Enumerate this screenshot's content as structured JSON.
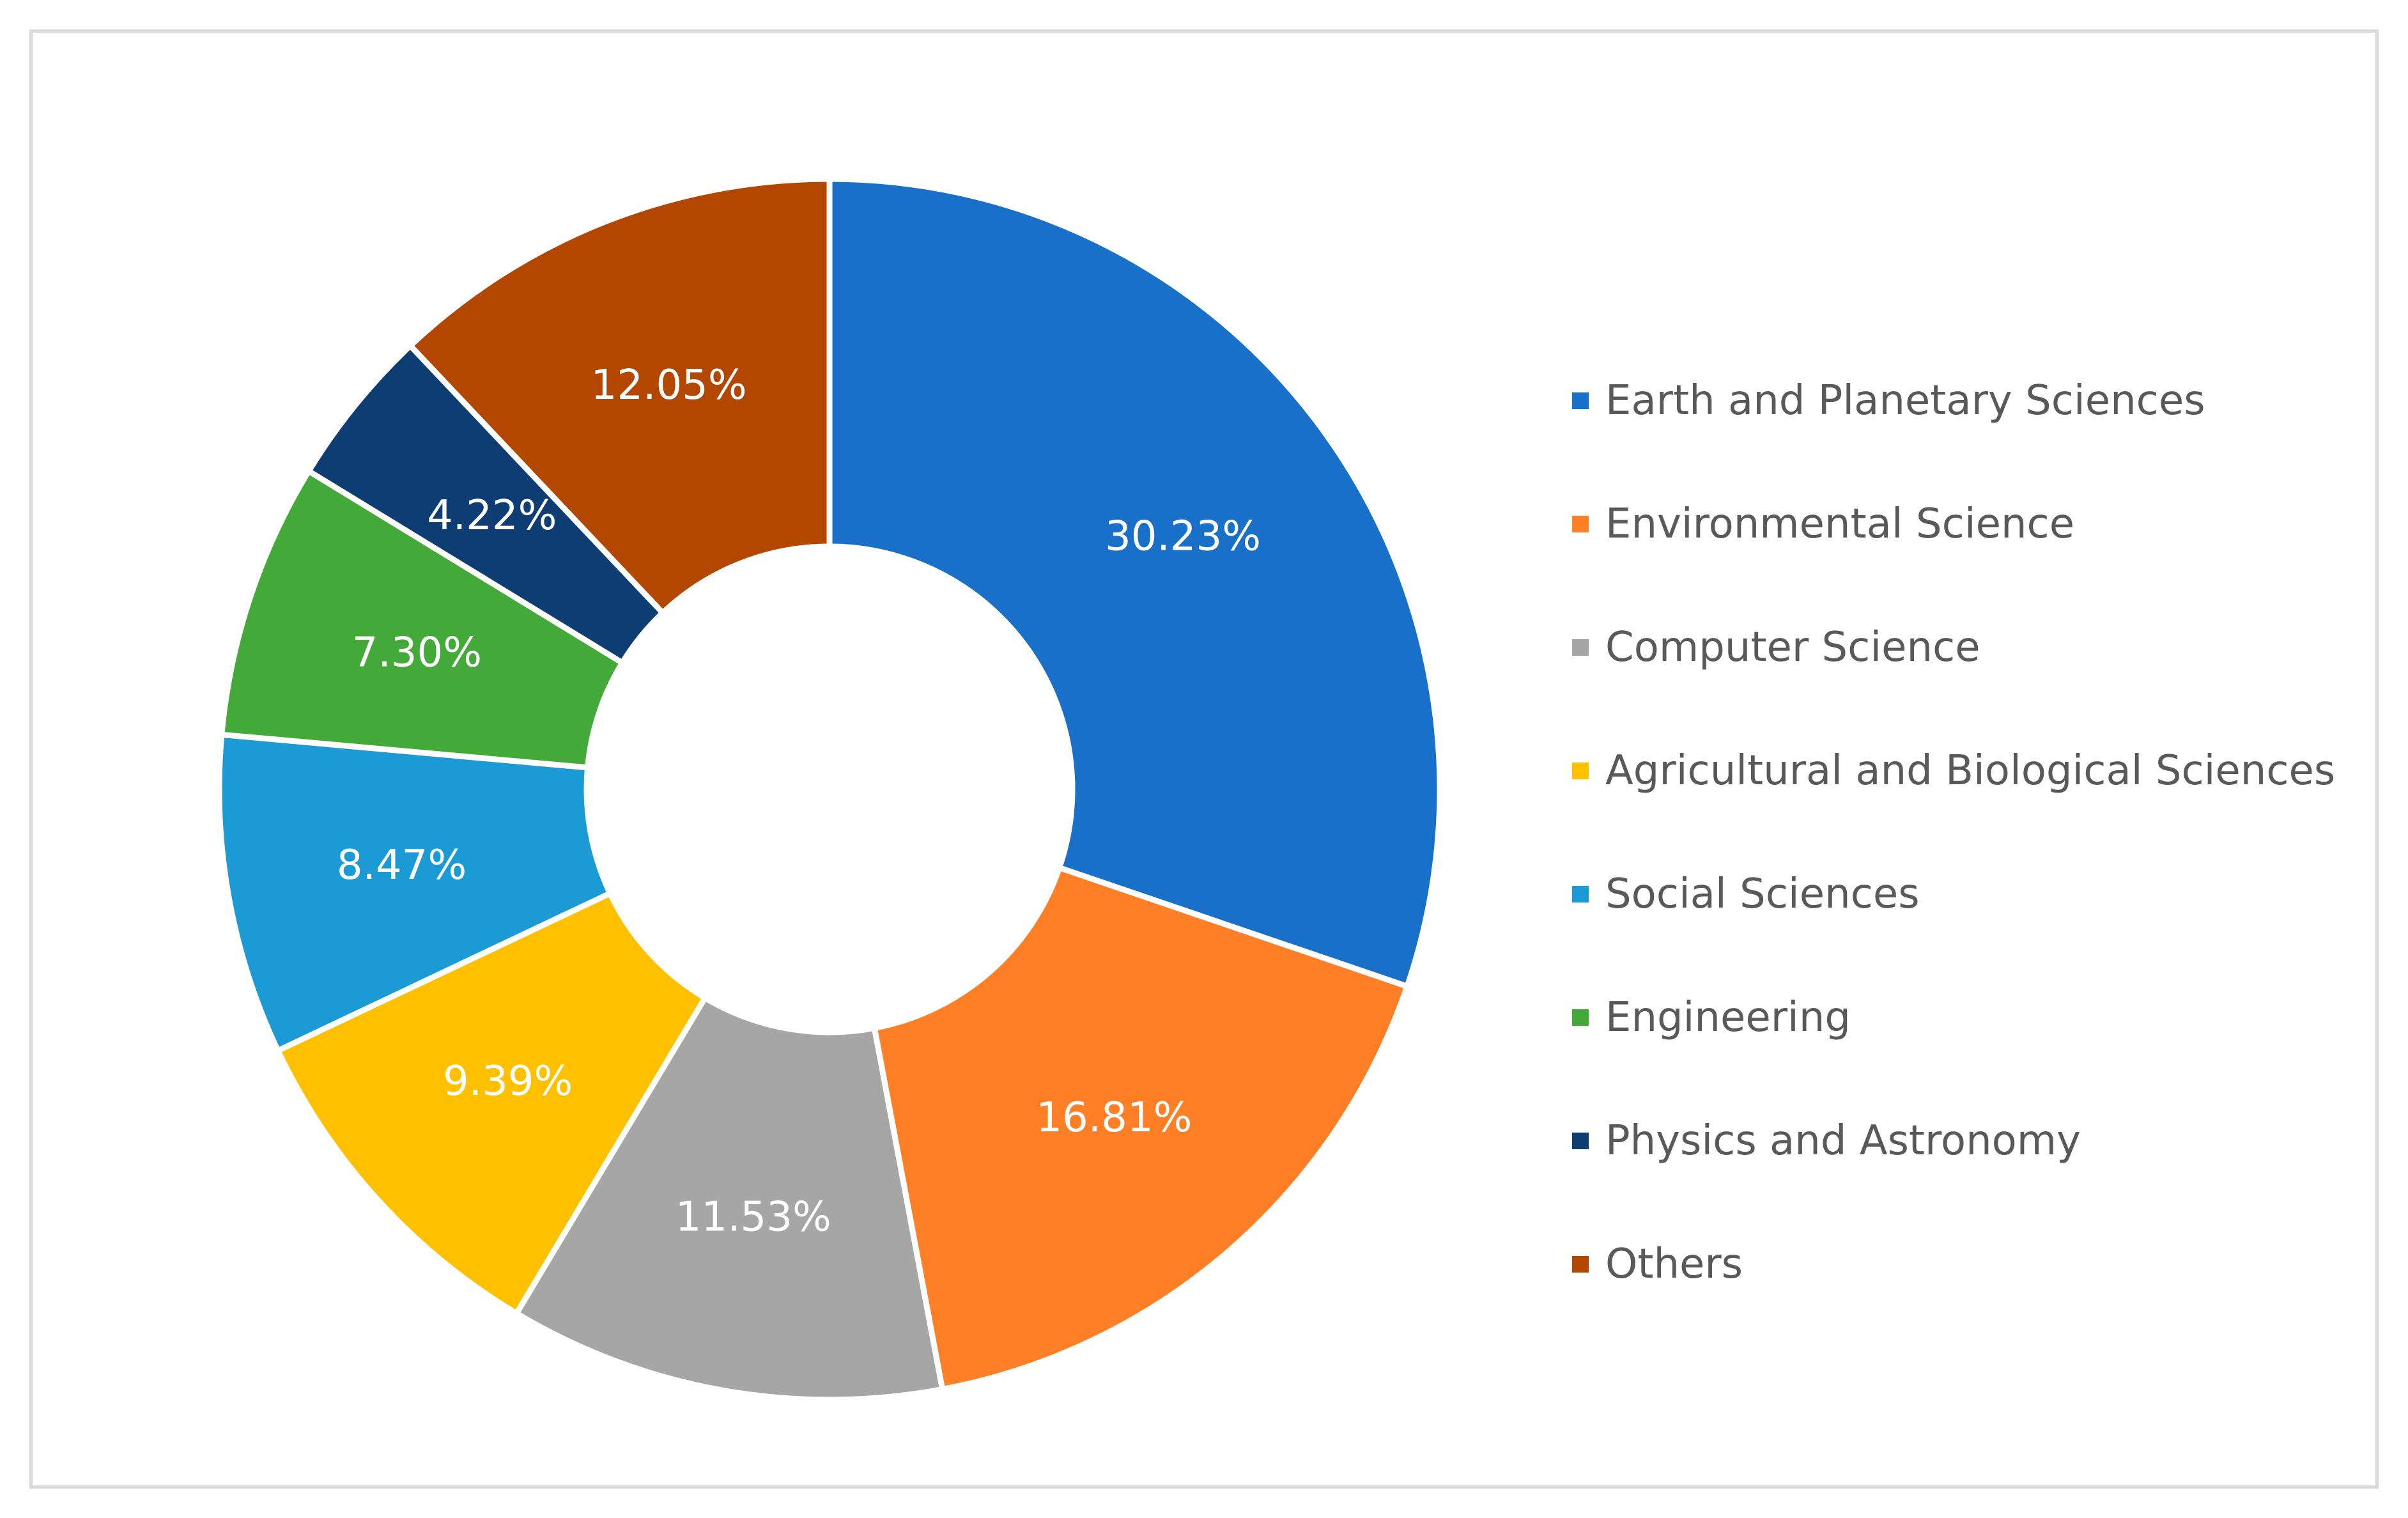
{
  "chart_data": {
    "type": "pie",
    "variant": "donut",
    "title": "",
    "categories": [
      "Earth and Planetary Sciences",
      "Environmental Science",
      "Computer Science",
      "Agricultural and Biological Sciences",
      "Social Sciences",
      "Engineering",
      "Physics and Astronomy",
      "Others"
    ],
    "values": [
      30.23,
      16.81,
      11.53,
      9.39,
      8.47,
      7.3,
      4.22,
      12.05
    ],
    "data_labels": [
      "30.23%",
      "16.81%",
      "11.53%",
      "9.39%",
      "8.47%",
      "7.30%",
      "4.22%",
      "12.05%"
    ],
    "colors": [
      "#1870C8",
      "#FF7F27",
      "#A6A6A6",
      "#FFC000",
      "#1C9AD6",
      "#43AA3A",
      "#0D3D73",
      "#B34700"
    ],
    "legend_placement": "right"
  }
}
